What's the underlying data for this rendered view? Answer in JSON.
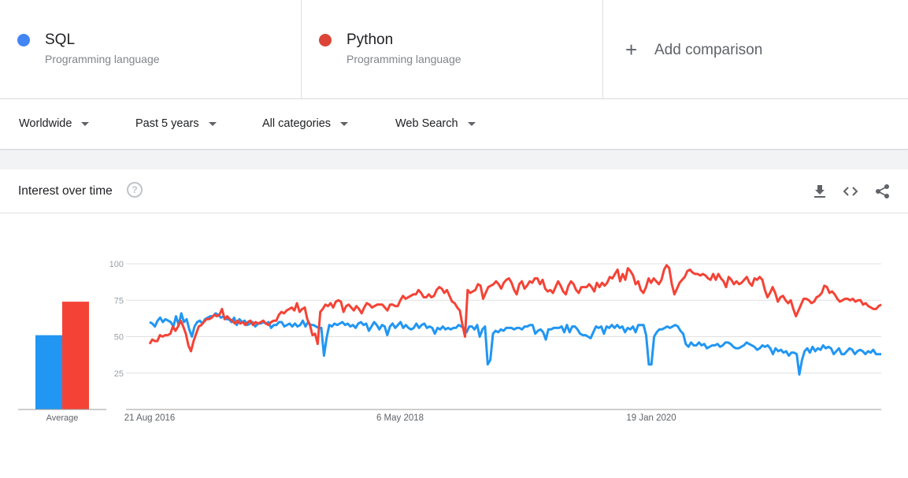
{
  "terms": [
    {
      "name": "SQL",
      "type": "Programming language",
      "color": "#4285f4"
    },
    {
      "name": "Python",
      "type": "Programming language",
      "color": "#db4437"
    }
  ],
  "add_comparison": {
    "icon": "plus-icon",
    "label": "Add comparison"
  },
  "filters": [
    "Worldwide",
    "Past 5 years",
    "All categories",
    "Web Search"
  ],
  "card": {
    "title": "Interest over time",
    "help_icon": "help-circle-icon",
    "actions": [
      "download-icon",
      "embed-code-icon",
      "share-icon"
    ]
  },
  "chart_data": {
    "type": "line",
    "title": "",
    "ylim": [
      0,
      100
    ],
    "yticks": [
      25,
      50,
      75,
      100
    ],
    "xtick_labels": [
      "21 Aug 2016",
      "6 May 2018",
      "19 Jan 2020"
    ],
    "average_label": "Average",
    "averages": [
      {
        "name": "SQL",
        "value": 51,
        "color": "#2196f3"
      },
      {
        "name": "Python",
        "value": 74,
        "color": "#f44336"
      }
    ],
    "series": [
      {
        "name": "SQL",
        "color": "#2196f3",
        "values": [
          60,
          59,
          57,
          61,
          63,
          60,
          62,
          61,
          60,
          57,
          64,
          58,
          66,
          60,
          62,
          55,
          50,
          57,
          60,
          61,
          59,
          62,
          63,
          64,
          64,
          66,
          65,
          63,
          64,
          62,
          62,
          60,
          63,
          58,
          62,
          60,
          61,
          58,
          59,
          60,
          57,
          59,
          59,
          60,
          59,
          60,
          56,
          58,
          58,
          60,
          60,
          57,
          58,
          59,
          57,
          59,
          57,
          58,
          61,
          57,
          60,
          58,
          58,
          57,
          56,
          56,
          37,
          49,
          58,
          57,
          59,
          58,
          59,
          60,
          58,
          59,
          57,
          58,
          56,
          59,
          60,
          58,
          59,
          54,
          57,
          60,
          58,
          55,
          58,
          57,
          51,
          57,
          59,
          56,
          58,
          60,
          56,
          58,
          56,
          55,
          56,
          59,
          56,
          58,
          59,
          56,
          57,
          56,
          52,
          56,
          55,
          57,
          55,
          56,
          55,
          56,
          56,
          58,
          57,
          56,
          53,
          57,
          57,
          55,
          58,
          50,
          55,
          57,
          31,
          34,
          52,
          54,
          53,
          55,
          54,
          56,
          56,
          56,
          55,
          56,
          56,
          55,
          57,
          57,
          58,
          58,
          52,
          54,
          55,
          53,
          48,
          55,
          55,
          56,
          56,
          56,
          57,
          53,
          58,
          53,
          57,
          57,
          55,
          52,
          51,
          51,
          50,
          49,
          53,
          57,
          56,
          57,
          52,
          57,
          56,
          58,
          56,
          58,
          56,
          57,
          53,
          56,
          55,
          57,
          53,
          58,
          58,
          58,
          51,
          31,
          31,
          50,
          53,
          55,
          55,
          56,
          57,
          56,
          57,
          58,
          57,
          54,
          52,
          45,
          43,
          46,
          44,
          44,
          46,
          44,
          45,
          42,
          43,
          44,
          44,
          45,
          43,
          44,
          46,
          46,
          45,
          43,
          42,
          42,
          43,
          44,
          46,
          45,
          44,
          43,
          41,
          42,
          44,
          43,
          44,
          42,
          38,
          42,
          40,
          41,
          39,
          40,
          37,
          39,
          39,
          38,
          24,
          34,
          40,
          42,
          39,
          43,
          40,
          42,
          41,
          44,
          42,
          43,
          42,
          38,
          40,
          42,
          38,
          38,
          40,
          42,
          41,
          38,
          40,
          41,
          40,
          38,
          40,
          39,
          41,
          38,
          38,
          38
        ]
      },
      {
        "name": "Python",
        "color": "#f44336",
        "values": [
          45,
          48,
          47,
          47,
          51,
          50,
          51,
          51,
          52,
          57,
          54,
          57,
          61,
          57,
          52,
          44,
          40,
          47,
          52,
          57,
          58,
          60,
          62,
          62,
          63,
          65,
          64,
          65,
          69,
          62,
          64,
          62,
          61,
          59,
          61,
          59,
          60,
          58,
          60,
          61,
          58,
          60,
          59,
          60,
          61,
          59,
          58,
          60,
          61,
          61,
          65,
          67,
          66,
          68,
          69,
          70,
          68,
          73,
          67,
          69,
          70,
          62,
          58,
          51,
          52,
          45,
          67,
          69,
          72,
          71,
          73,
          70,
          74,
          75,
          74,
          67,
          71,
          72,
          70,
          68,
          71,
          69,
          66,
          70,
          73,
          72,
          70,
          71,
          72,
          72,
          72,
          70,
          68,
          72,
          72,
          71,
          71,
          75,
          78,
          76,
          77,
          78,
          79,
          79,
          82,
          80,
          77,
          77,
          79,
          77,
          78,
          82,
          84,
          83,
          80,
          82,
          78,
          74,
          73,
          70,
          68,
          58,
          50,
          82,
          80,
          81,
          82,
          86,
          85,
          76,
          80,
          84,
          85,
          86,
          88,
          86,
          83,
          87,
          89,
          90,
          87,
          82,
          79,
          86,
          88,
          83,
          85,
          88,
          87,
          90,
          90,
          86,
          89,
          83,
          81,
          82,
          80,
          84,
          88,
          85,
          81,
          79,
          85,
          88,
          86,
          82,
          80,
          84,
          84,
          84,
          86,
          84,
          81,
          87,
          84,
          87,
          85,
          87,
          91,
          90,
          93,
          96,
          88,
          93,
          89,
          97,
          95,
          92,
          86,
          88,
          82,
          80,
          84,
          90,
          87,
          90,
          88,
          86,
          89,
          96,
          99,
          97,
          86,
          79,
          83,
          87,
          89,
          91,
          95,
          96,
          94,
          93,
          93,
          92,
          93,
          92,
          90,
          89,
          93,
          89,
          93,
          90,
          88,
          84,
          91,
          89,
          86,
          88,
          86,
          87,
          89,
          91,
          87,
          85,
          90,
          89,
          91,
          89,
          82,
          77,
          80,
          84,
          80,
          74,
          77,
          78,
          75,
          73,
          75,
          69,
          64,
          68,
          72,
          76,
          76,
          75,
          73,
          74,
          77,
          78,
          80,
          85,
          84,
          80,
          81,
          79,
          76,
          74,
          75,
          76,
          76,
          75,
          76,
          74,
          75,
          75,
          72,
          73,
          71,
          70,
          69,
          69,
          71,
          72
        ]
      }
    ]
  }
}
